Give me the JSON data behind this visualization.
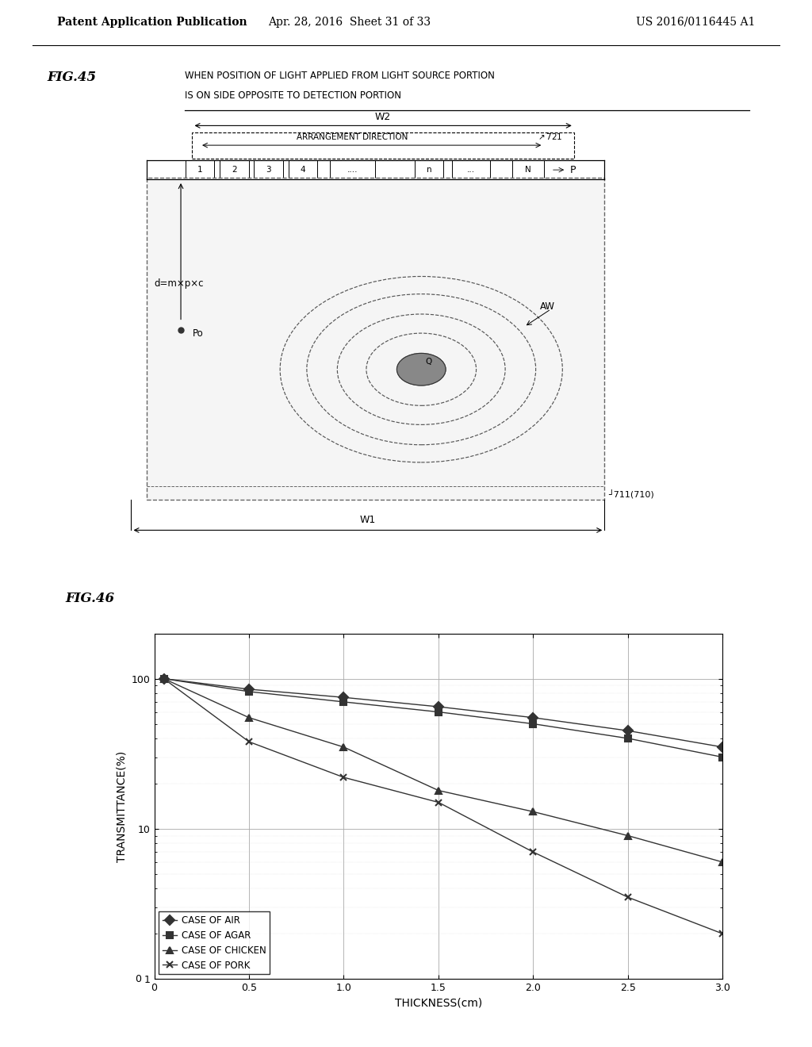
{
  "header_left": "Patent Application Publication",
  "header_center": "Apr. 28, 2016  Sheet 31 of 33",
  "header_right": "US 2016/0116445 A1",
  "fig45_label": "FIG.45",
  "fig45_caption_line1": "WHEN POSITION OF LIGHT APPLIED FROM LIGHT SOURCE PORTION",
  "fig45_caption_line2": "IS ON SIDE OPPOSITE TO DETECTION PORTION",
  "fig46_label": "FIG.46",
  "graph_xlabel": "THICKNESS(cm)",
  "graph_ylabel": "TRANSMITTANCE(%)",
  "graph_xticks": [
    0,
    0.5,
    1.0,
    1.5,
    2.0,
    2.5,
    3.0
  ],
  "graph_xtick_labels": [
    "0",
    "0.5",
    "1.0",
    "1.5",
    "2.0",
    "2.5",
    "3.0"
  ],
  "series": [
    {
      "label": "CASE OF AIR",
      "marker": "D",
      "x": [
        0.05,
        0.5,
        1.0,
        1.5,
        2.0,
        2.5,
        3.0
      ],
      "y": [
        100,
        85,
        75,
        65,
        55,
        45,
        35
      ]
    },
    {
      "label": "CASE OF AGAR",
      "marker": "s",
      "x": [
        0.05,
        0.5,
        1.0,
        1.5,
        2.0,
        2.5,
        3.0
      ],
      "y": [
        100,
        82,
        70,
        60,
        50,
        40,
        30
      ]
    },
    {
      "label": "CASE OF CHICKEN",
      "marker": "^",
      "x": [
        0.05,
        0.5,
        1.0,
        1.5,
        2.0,
        2.5,
        3.0
      ],
      "y": [
        100,
        55,
        35,
        18,
        13,
        9,
        6
      ]
    },
    {
      "label": "CASE OF PORK",
      "marker": "x",
      "x": [
        0.05,
        0.5,
        1.0,
        1.5,
        2.0,
        2.5,
        3.0
      ],
      "y": [
        100,
        38,
        22,
        15,
        7,
        3.5,
        2
      ]
    }
  ],
  "bg_color": "#ffffff",
  "line_color": "#555555",
  "grid_color": "#aaaaaa"
}
